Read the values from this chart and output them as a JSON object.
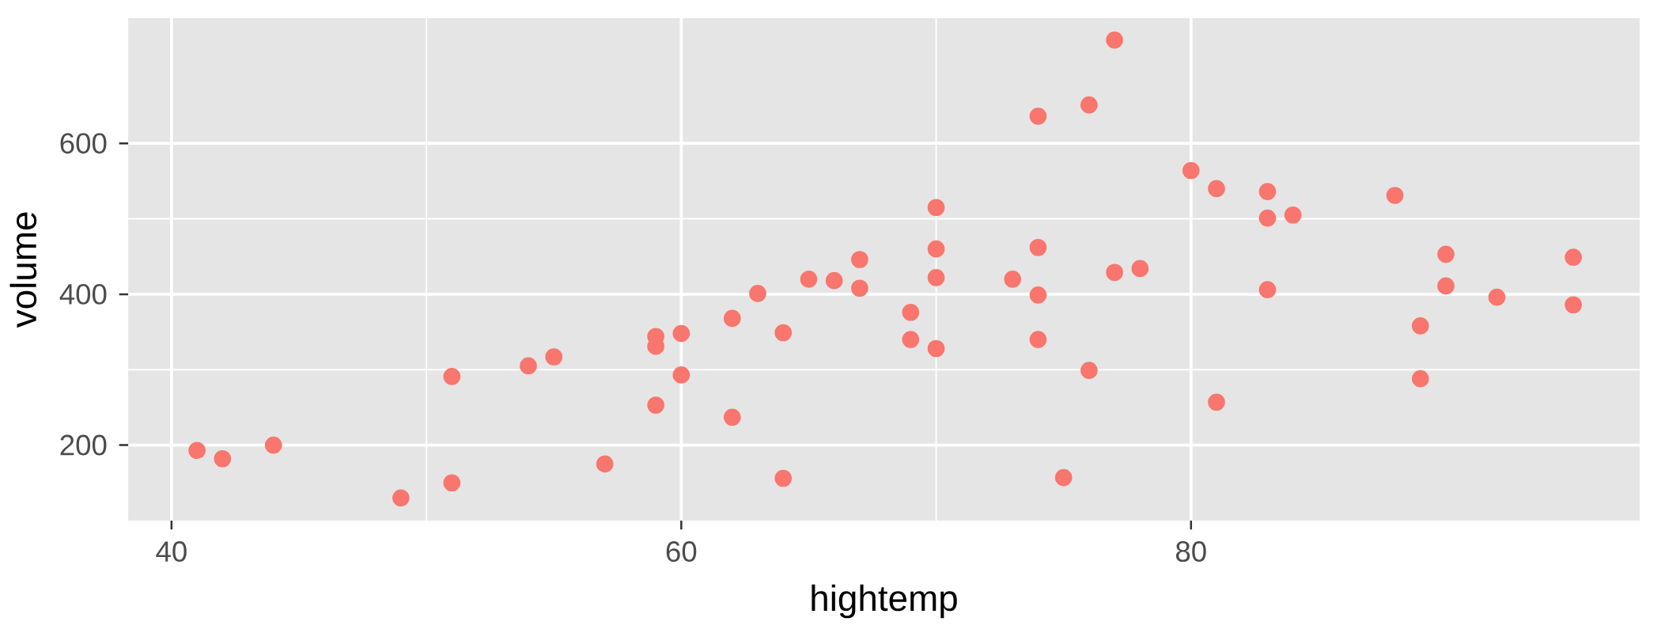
{
  "chart_data": {
    "type": "scatter",
    "xlabel": "hightemp",
    "ylabel": "volume",
    "x": [
      41,
      42,
      44,
      49,
      51,
      51,
      54,
      55,
      57,
      59,
      59,
      59,
      60,
      60,
      62,
      62,
      63,
      64,
      64,
      65,
      66,
      67,
      67,
      69,
      69,
      70,
      70,
      70,
      70,
      73,
      74,
      74,
      74,
      74,
      75,
      76,
      76,
      77,
      77,
      78,
      80,
      81,
      81,
      83,
      83,
      83,
      84,
      88,
      89,
      89,
      90,
      90,
      92,
      95,
      95
    ],
    "values": [
      193,
      182,
      200,
      130,
      291,
      150,
      305,
      317,
      175,
      344,
      331,
      253,
      348,
      293,
      368,
      237,
      401,
      349,
      156,
      420,
      418,
      446,
      408,
      376,
      340,
      515,
      460,
      422,
      328,
      420,
      636,
      462,
      399,
      340,
      157,
      651,
      299,
      737,
      429,
      434,
      564,
      540,
      257,
      536,
      501,
      406,
      505,
      531,
      358,
      288,
      453,
      411,
      396,
      449,
      386
    ],
    "color": "#f8766d",
    "marker": "circle",
    "grid": true,
    "xlim": [
      38.3,
      97.6
    ],
    "ylim": [
      100,
      766
    ],
    "xticks": [
      40,
      60,
      80
    ],
    "yticks": [
      200,
      400,
      600
    ]
  }
}
